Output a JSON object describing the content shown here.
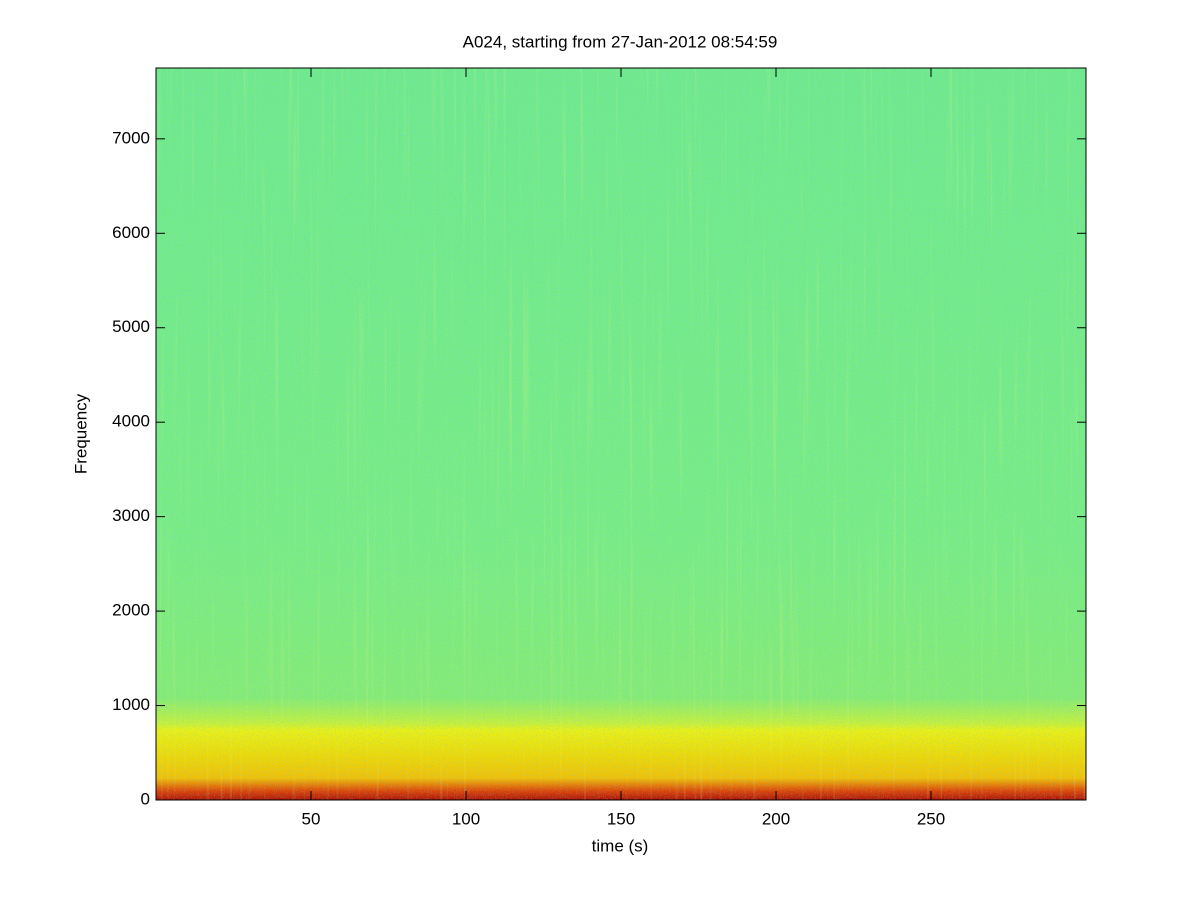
{
  "chart_data": {
    "type": "spectrogram",
    "title": "A024, starting from 27-Jan-2012 08:54:59",
    "xlabel": "time (s)",
    "ylabel": "Frequency",
    "xlim": [
      0,
      300
    ],
    "xticks": [
      50,
      100,
      150,
      200,
      250
    ],
    "ylim": [
      0,
      7750
    ],
    "yticks": [
      0,
      1000,
      2000,
      3000,
      4000,
      5000,
      6000,
      7000
    ]
  }
}
